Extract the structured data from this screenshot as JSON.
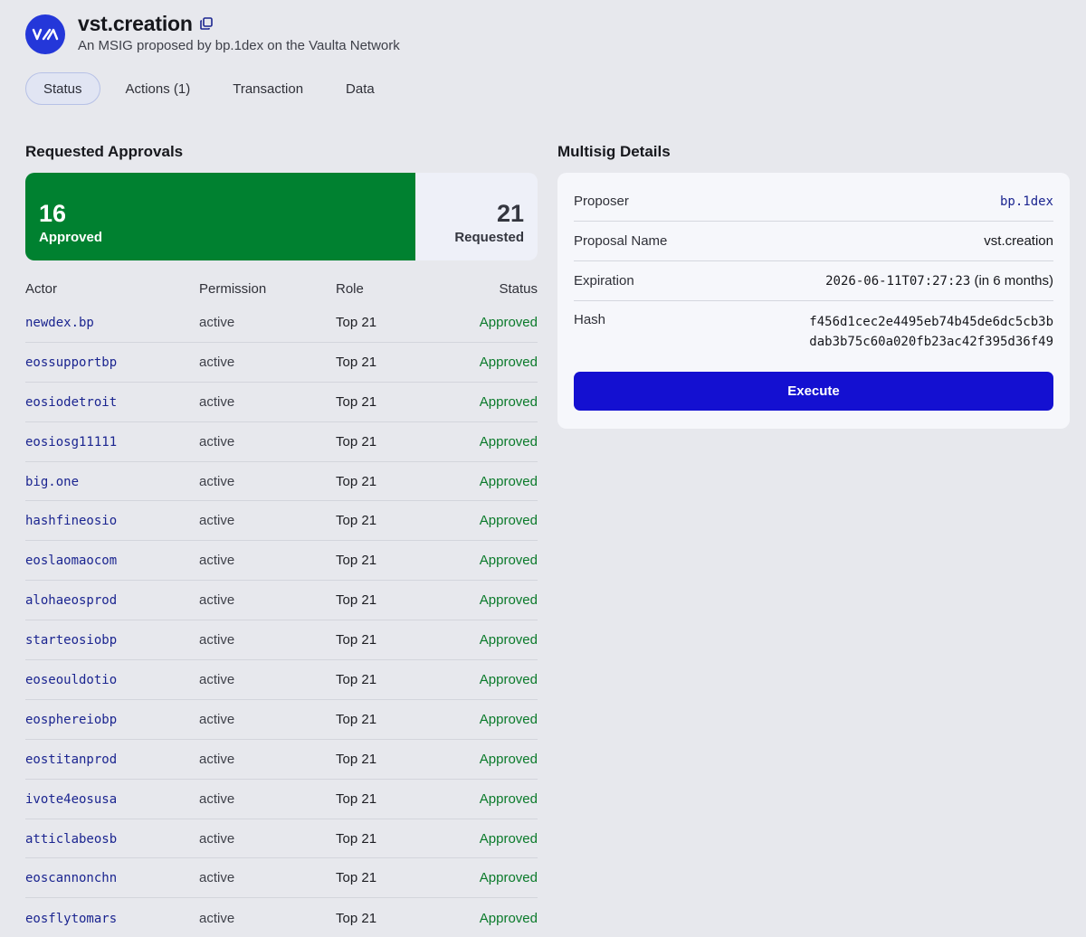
{
  "header": {
    "title": "vst.creation",
    "subtitle": "An MSIG proposed by bp.1dex on the Vaulta Network",
    "brand_color": "#2437d9"
  },
  "tabs": [
    {
      "label": "Status",
      "active": true
    },
    {
      "label": "Actions (1)",
      "active": false
    },
    {
      "label": "Transaction",
      "active": false
    },
    {
      "label": "Data",
      "active": false
    }
  ],
  "approvals": {
    "section_title": "Requested Approvals",
    "approved_count": "16",
    "approved_label": "Approved",
    "requested_count": "21",
    "requested_label": "Requested",
    "approved_fraction": 0.7619,
    "approved_color": "#008130",
    "columns": [
      "Actor",
      "Permission",
      "Role",
      "Status"
    ],
    "rows": [
      {
        "actor": "newdex.bp",
        "permission": "active",
        "role": "Top 21",
        "status": "Approved"
      },
      {
        "actor": "eossupportbp",
        "permission": "active",
        "role": "Top 21",
        "status": "Approved"
      },
      {
        "actor": "eosiodetroit",
        "permission": "active",
        "role": "Top 21",
        "status": "Approved"
      },
      {
        "actor": "eosiosg11111",
        "permission": "active",
        "role": "Top 21",
        "status": "Approved"
      },
      {
        "actor": "big.one",
        "permission": "active",
        "role": "Top 21",
        "status": "Approved"
      },
      {
        "actor": "hashfineosio",
        "permission": "active",
        "role": "Top 21",
        "status": "Approved"
      },
      {
        "actor": "eoslaomaocom",
        "permission": "active",
        "role": "Top 21",
        "status": "Approved"
      },
      {
        "actor": "alohaeosprod",
        "permission": "active",
        "role": "Top 21",
        "status": "Approved"
      },
      {
        "actor": "starteosiobp",
        "permission": "active",
        "role": "Top 21",
        "status": "Approved"
      },
      {
        "actor": "eoseouldotio",
        "permission": "active",
        "role": "Top 21",
        "status": "Approved"
      },
      {
        "actor": "eosphereiobp",
        "permission": "active",
        "role": "Top 21",
        "status": "Approved"
      },
      {
        "actor": "eostitanprod",
        "permission": "active",
        "role": "Top 21",
        "status": "Approved"
      },
      {
        "actor": "ivote4eosusa",
        "permission": "active",
        "role": "Top 21",
        "status": "Approved"
      },
      {
        "actor": "atticlabeosb",
        "permission": "active",
        "role": "Top 21",
        "status": "Approved"
      },
      {
        "actor": "eoscannonchn",
        "permission": "active",
        "role": "Top 21",
        "status": "Approved"
      },
      {
        "actor": "eosflytomars",
        "permission": "active",
        "role": "Top 21",
        "status": "Approved"
      }
    ]
  },
  "details": {
    "section_title": "Multisig Details",
    "proposer_label": "Proposer",
    "proposer_value": "bp.1dex",
    "proposal_name_label": "Proposal Name",
    "proposal_name_value": "vst.creation",
    "expiration_label": "Expiration",
    "expiration_value": "2026-06-11T07:27:23",
    "expiration_relative": "(in 6 months)",
    "hash_label": "Hash",
    "hash_line1": "f456d1cec2e4495eb74b45de6dc5cb3b",
    "hash_line2": "dab3b75c60a020fb23ac42f395d36f49",
    "execute_label": "Execute",
    "execute_color": "#1410d1"
  }
}
